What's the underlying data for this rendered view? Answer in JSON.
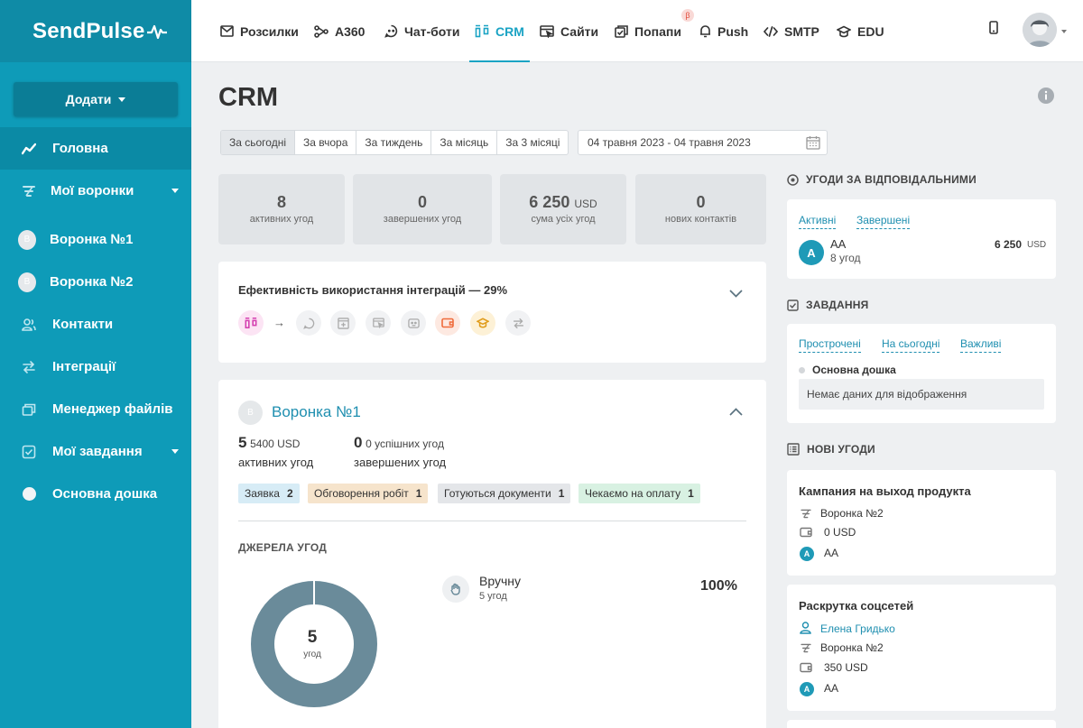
{
  "brand": {
    "name": "SendPulse",
    "accent": "#1aa3c4",
    "sidebar_bg": "#0e9bb8"
  },
  "sidebar": {
    "add_label": "Додати",
    "items": [
      {
        "label": "Головна",
        "icon": "chart-line-icon",
        "active": true
      },
      {
        "label": "Мої воронки",
        "icon": "funnel-icon",
        "dropdown": true
      },
      {
        "label": "Воронка №1",
        "icon": "avatar-b",
        "avatar_letter": "В"
      },
      {
        "label": "Воронка №2",
        "icon": "avatar-b",
        "avatar_letter": "В"
      },
      {
        "label": "Контакти",
        "icon": "contacts-icon"
      },
      {
        "label": "Інтеграції",
        "icon": "arrows-swap-icon"
      },
      {
        "label": "Менеджер файлів",
        "icon": "files-icon"
      },
      {
        "label": "Мої завдання",
        "icon": "checkbox-icon",
        "dropdown": true
      },
      {
        "label": "Основна дошка",
        "icon": "dot-icon"
      }
    ]
  },
  "topnav": {
    "items": [
      {
        "label": "Розсилки",
        "icon": "mail-icon"
      },
      {
        "label": "A360",
        "icon": "nodes-icon"
      },
      {
        "label": "Чат-боти",
        "icon": "chatbot-icon"
      },
      {
        "label": "CRM",
        "icon": "crm-icon",
        "active": true
      },
      {
        "label": "Сайти",
        "icon": "site-icon"
      },
      {
        "label": "Попапи",
        "icon": "popup-icon",
        "badge": "β"
      },
      {
        "label": "Push",
        "icon": "bell-icon"
      },
      {
        "label": "SMTP",
        "icon": "code-icon"
      },
      {
        "label": "EDU",
        "icon": "graduation-icon"
      }
    ]
  },
  "page": {
    "title": "CRM"
  },
  "filters": {
    "periods": [
      "За сьогодні",
      "За вчора",
      "За тиждень",
      "За місяць",
      "За 3 місяці"
    ],
    "active_period": "За сьогодні",
    "date_range": "04 травня 2023 - 04 травня 2023"
  },
  "stats": [
    {
      "value": "8",
      "unit": "",
      "caption": "активних угод"
    },
    {
      "value": "0",
      "unit": "",
      "caption": "завершених угод"
    },
    {
      "value": "6 250",
      "unit": "USD",
      "caption": "сума усіх угод"
    },
    {
      "value": "0",
      "unit": "",
      "caption": "нових контактів"
    }
  ],
  "integrations": {
    "title": "Ефективність використання інтеграцій — 29%",
    "icons": [
      "crm-icon",
      "chatbot-icon",
      "add-page-icon",
      "site-icon",
      "bot-icon",
      "wallet-icon",
      "graduation-icon",
      "arrows-swap-icon"
    ]
  },
  "funnel": {
    "avatar_letter": "В",
    "title": "Воронка №1",
    "active_count": "5",
    "active_sum": "5400 USD",
    "active_label": "активних угод",
    "done_count": "0",
    "done_sub": "0 успішних угод",
    "done_label": "завершених угод",
    "stages": [
      {
        "name": "Заявка",
        "count": "2",
        "color": "#d7ecf6"
      },
      {
        "name": "Обговорення робіт",
        "count": "1",
        "color": "#f6e4cc"
      },
      {
        "name": "Готуються документи",
        "count": "1",
        "color": "#e4e6e9"
      },
      {
        "name": "Чекаємо на оплату",
        "count": "1",
        "color": "#d8f1e2"
      }
    ],
    "sources_label": "ДЖЕРЕЛА УГОД",
    "donut_total": "5",
    "donut_caption": "угод",
    "sources": [
      {
        "name": "Вручну",
        "count_label": "5 угод",
        "percent": "100%",
        "share": 1.0,
        "color": "#6a8b9a"
      }
    ]
  },
  "right": {
    "by_responsible": {
      "title": "УГОДИ ЗА ВІДПОВІДАЛЬНИМИ",
      "tabs": [
        "Активні",
        "Завершені"
      ],
      "rows": [
        {
          "avatar": "A",
          "name": "AA",
          "sub": "8 угод",
          "amount": "6 250",
          "currency": "USD"
        }
      ]
    },
    "tasks": {
      "title": "ЗАВДАННЯ",
      "tabs": [
        "Прострочені",
        "На сьогодні",
        "Важливі"
      ],
      "board": "Основна дошка",
      "empty": "Немає даних для відображення"
    },
    "new_deals": {
      "title": "НОВІ УГОДИ",
      "deals": [
        {
          "title": "Кампания на выход продукта",
          "funnel": "Воронка №2",
          "amount": "0 USD",
          "owner": "AA",
          "owner_avatar": "A"
        },
        {
          "title": "Раскрутка соцсетей",
          "contact": "Елена Гридько",
          "funnel": "Воронка №2",
          "amount": "350 USD",
          "owner": "AA",
          "owner_avatar": "A"
        }
      ]
    }
  }
}
